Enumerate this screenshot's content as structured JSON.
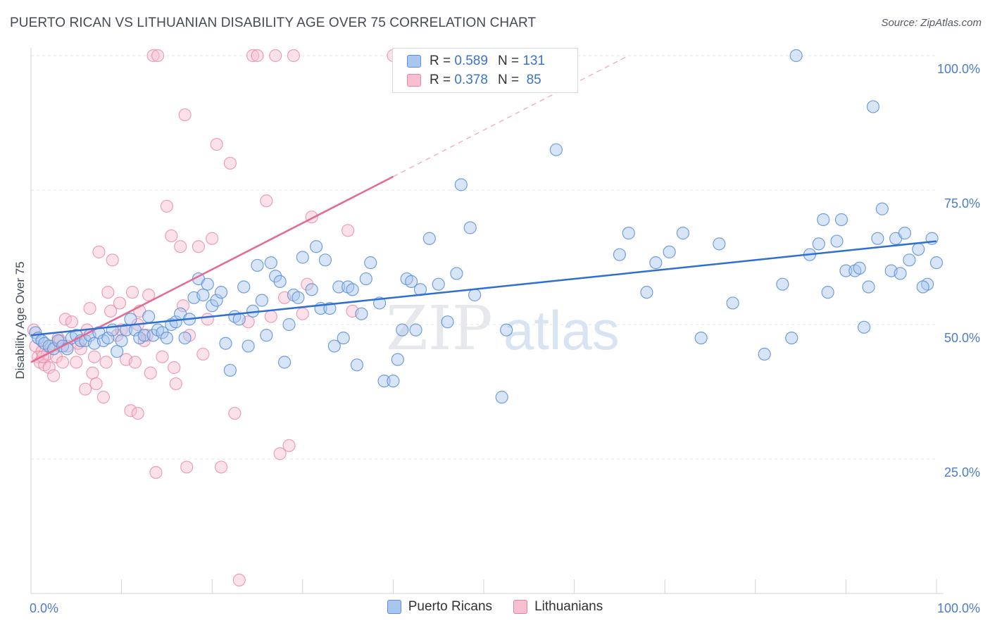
{
  "title": "PUERTO RICAN VS LITHUANIAN DISABILITY AGE OVER 75 CORRELATION CHART",
  "source": "Source: ZipAtlas.com",
  "watermark": {
    "zip": "ZIP",
    "atlas": "atlas"
  },
  "legend": {
    "rows": [
      {
        "r_label": "R =",
        "r_value": "0.589",
        "n_label": "N =",
        "n_value": "131",
        "color": "#a9c6ee",
        "stroke": "#5b8fd6"
      },
      {
        "r_label": "R =",
        "r_value": "0.378",
        "n_label": "N =",
        "n_value": "85",
        "color": "#f7bfd0",
        "stroke": "#e583a3"
      }
    ]
  },
  "bottom_legend": [
    {
      "label": "Puerto Ricans",
      "color": "#a9c6ee",
      "stroke": "#5b8fd6"
    },
    {
      "label": "Lithuanians",
      "color": "#f7bfd0",
      "stroke": "#e583a3"
    }
  ],
  "chart_data": {
    "type": "scatter",
    "title": "PUERTO RICAN VS LITHUANIAN DISABILITY AGE OVER 75 CORRELATION CHART",
    "xlabel": "",
    "ylabel": "Disability Age Over 75",
    "xlim": [
      0,
      100
    ],
    "ylim": [
      0,
      103
    ],
    "x_tick_labels": [
      "0.0%",
      "100.0%"
    ],
    "y_ticks": [
      25,
      50,
      75,
      100
    ],
    "y_tick_labels": [
      "25.0%",
      "50.0%",
      "75.0%",
      "100.0%"
    ],
    "grid": true,
    "legend_position": "top-center",
    "series": [
      {
        "name": "Puerto Ricans",
        "color": "#5b8fd6",
        "fill": "#a9c6ee",
        "trend": {
          "x": [
            0,
            100
          ],
          "y": [
            48,
            65.5
          ]
        },
        "points": [
          [
            0.5,
            48.5
          ],
          [
            0.8,
            47.5
          ],
          [
            1.2,
            47
          ],
          [
            1.5,
            46.5
          ],
          [
            2,
            46
          ],
          [
            2.5,
            45.5
          ],
          [
            3,
            47
          ],
          [
            3.5,
            46
          ],
          [
            4,
            45.5
          ],
          [
            4.5,
            47.5
          ],
          [
            5,
            48
          ],
          [
            5.5,
            47
          ],
          [
            6,
            47
          ],
          [
            6.5,
            48
          ],
          [
            7,
            46.5
          ],
          [
            7.5,
            48.5
          ],
          [
            8,
            47
          ],
          [
            8.5,
            47.5
          ],
          [
            9,
            49
          ],
          [
            9.5,
            45
          ],
          [
            10,
            47
          ],
          [
            10.5,
            49
          ],
          [
            11,
            51
          ],
          [
            11.5,
            49
          ],
          [
            12,
            47.5
          ],
          [
            12.5,
            48
          ],
          [
            13,
            51.5
          ],
          [
            13.5,
            48
          ],
          [
            14,
            49
          ],
          [
            14.5,
            48.5
          ],
          [
            15,
            47.5
          ],
          [
            15.5,
            50
          ],
          [
            16,
            50.5
          ],
          [
            16.5,
            52
          ],
          [
            17,
            47.5
          ],
          [
            17.5,
            51
          ],
          [
            18,
            55
          ],
          [
            18.5,
            58.5
          ],
          [
            19,
            55.5
          ],
          [
            19.5,
            57.5
          ],
          [
            20,
            53.5
          ],
          [
            20.5,
            54.5
          ],
          [
            21,
            56
          ],
          [
            21.5,
            46.5
          ],
          [
            22,
            41.5
          ],
          [
            22.5,
            51.5
          ],
          [
            23,
            51
          ],
          [
            23.5,
            57
          ],
          [
            24,
            46
          ],
          [
            24.5,
            52.5
          ],
          [
            25,
            61
          ],
          [
            25.5,
            54.5
          ],
          [
            26,
            48
          ],
          [
            26.5,
            61.5
          ],
          [
            27,
            59
          ],
          [
            27.5,
            58
          ],
          [
            28,
            43
          ],
          [
            28.5,
            50
          ],
          [
            29,
            55.5
          ],
          [
            29.5,
            55
          ],
          [
            30,
            62.5
          ],
          [
            31,
            56.5
          ],
          [
            31.5,
            64.5
          ],
          [
            32,
            53
          ],
          [
            32.5,
            62
          ],
          [
            33,
            53
          ],
          [
            33.5,
            46
          ],
          [
            34,
            57
          ],
          [
            34.5,
            47.5
          ],
          [
            35,
            57
          ],
          [
            35.5,
            56.5
          ],
          [
            36,
            42.5
          ],
          [
            36.5,
            52
          ],
          [
            37,
            58.5
          ],
          [
            37.5,
            61.5
          ],
          [
            38.5,
            54
          ],
          [
            39,
            39.5
          ],
          [
            40,
            39.5
          ],
          [
            40.5,
            43.5
          ],
          [
            41,
            49
          ],
          [
            41.5,
            58.5
          ],
          [
            42,
            58
          ],
          [
            42.5,
            49
          ],
          [
            43,
            56.5
          ],
          [
            44,
            66
          ],
          [
            45,
            57.5
          ],
          [
            46,
            50.5
          ],
          [
            47,
            59.5
          ],
          [
            47.5,
            76
          ],
          [
            48.5,
            68
          ],
          [
            49,
            55.5
          ],
          [
            52,
            36.5
          ],
          [
            52.5,
            49
          ],
          [
            58,
            82.5
          ],
          [
            65,
            63
          ],
          [
            66,
            67
          ],
          [
            68,
            56
          ],
          [
            69,
            61.5
          ],
          [
            70.5,
            63.5
          ],
          [
            72,
            67
          ],
          [
            74,
            47.5
          ],
          [
            76,
            65
          ],
          [
            77.5,
            54
          ],
          [
            81,
            44.5
          ],
          [
            83,
            57.5
          ],
          [
            84,
            47.5
          ],
          [
            84.5,
            100
          ],
          [
            86,
            63
          ],
          [
            87,
            65
          ],
          [
            87.5,
            69.5
          ],
          [
            88,
            56
          ],
          [
            89,
            65.5
          ],
          [
            89.5,
            69.5
          ],
          [
            90,
            60
          ],
          [
            91,
            60
          ],
          [
            91.5,
            60.5
          ],
          [
            92,
            49.5
          ],
          [
            92.5,
            57
          ],
          [
            93,
            90.5
          ],
          [
            93.5,
            66
          ],
          [
            94,
            71.5
          ],
          [
            95,
            60
          ],
          [
            95.5,
            66
          ],
          [
            96,
            59.5
          ],
          [
            96.5,
            67
          ],
          [
            97,
            62
          ],
          [
            98,
            64
          ],
          [
            99,
            57.5
          ],
          [
            99.5,
            66
          ],
          [
            100,
            61.5
          ],
          [
            98.5,
            57
          ]
        ]
      },
      {
        "name": "Lithuanians",
        "color": "#e583a3",
        "fill": "#f7bfd0",
        "trend": {
          "x": [
            0,
            40
          ],
          "y": [
            43,
            77.5
          ]
        },
        "trend_dashed": {
          "x": [
            40,
            66
          ],
          "y": [
            77.5,
            100
          ]
        },
        "points": [
          [
            0.3,
            49
          ],
          [
            0.5,
            46
          ],
          [
            0.8,
            44
          ],
          [
            1,
            43
          ],
          [
            1.2,
            45
          ],
          [
            1.5,
            42.5
          ],
          [
            1.8,
            44.5
          ],
          [
            2,
            42
          ],
          [
            2.5,
            40.5
          ],
          [
            2.8,
            44
          ],
          [
            3,
            47.5
          ],
          [
            3.5,
            43
          ],
          [
            3.8,
            51
          ],
          [
            4,
            46
          ],
          [
            4.5,
            50.5
          ],
          [
            5,
            43
          ],
          [
            5.5,
            45.5
          ],
          [
            6,
            38
          ],
          [
            6.5,
            53
          ],
          [
            6.8,
            41
          ],
          [
            7,
            44
          ],
          [
            7.2,
            39
          ],
          [
            7.5,
            63.5
          ],
          [
            8,
            36.5
          ],
          [
            8.3,
            43
          ],
          [
            8.5,
            56
          ],
          [
            8.8,
            52.5
          ],
          [
            9,
            62
          ],
          [
            9.5,
            48
          ],
          [
            9.8,
            54
          ],
          [
            10,
            49
          ],
          [
            10.5,
            43.5
          ],
          [
            11,
            34
          ],
          [
            11.2,
            56
          ],
          [
            11.5,
            43
          ],
          [
            11.8,
            50
          ],
          [
            12,
            52.5
          ],
          [
            12.5,
            47
          ],
          [
            12.8,
            48
          ],
          [
            13,
            55.5
          ],
          [
            13.2,
            41
          ],
          [
            13.5,
            100
          ],
          [
            14,
            100
          ],
          [
            14.5,
            44
          ],
          [
            15,
            72
          ],
          [
            15.5,
            66.5
          ],
          [
            15.8,
            42
          ],
          [
            16,
            39
          ],
          [
            16.5,
            64.5
          ],
          [
            16.8,
            53.5
          ],
          [
            17,
            89
          ],
          [
            17.2,
            23.5
          ],
          [
            17.5,
            48
          ],
          [
            18.5,
            64.5
          ],
          [
            19,
            44.5
          ],
          [
            19.5,
            51
          ],
          [
            20,
            66
          ],
          [
            20.5,
            83.5
          ],
          [
            21,
            23.5
          ],
          [
            22,
            80
          ],
          [
            22.5,
            33.5
          ],
          [
            23,
            2.5
          ],
          [
            24,
            50.5
          ],
          [
            24.5,
            100
          ],
          [
            25,
            100
          ],
          [
            26,
            73
          ],
          [
            26.5,
            51.5
          ],
          [
            27,
            100
          ],
          [
            27.5,
            26
          ],
          [
            28,
            55
          ],
          [
            28.5,
            27.5
          ],
          [
            29,
            100
          ],
          [
            30,
            52
          ],
          [
            30.5,
            57.5
          ],
          [
            31,
            70
          ],
          [
            35,
            67.5
          ],
          [
            35.5,
            52.5
          ],
          [
            40,
            100
          ],
          [
            3.2,
            47
          ],
          [
            5.2,
            46.5
          ],
          [
            2.2,
            46
          ],
          [
            1.3,
            44
          ],
          [
            6.2,
            49
          ],
          [
            11.8,
            33.5
          ],
          [
            13.8,
            22.5
          ]
        ]
      }
    ]
  }
}
